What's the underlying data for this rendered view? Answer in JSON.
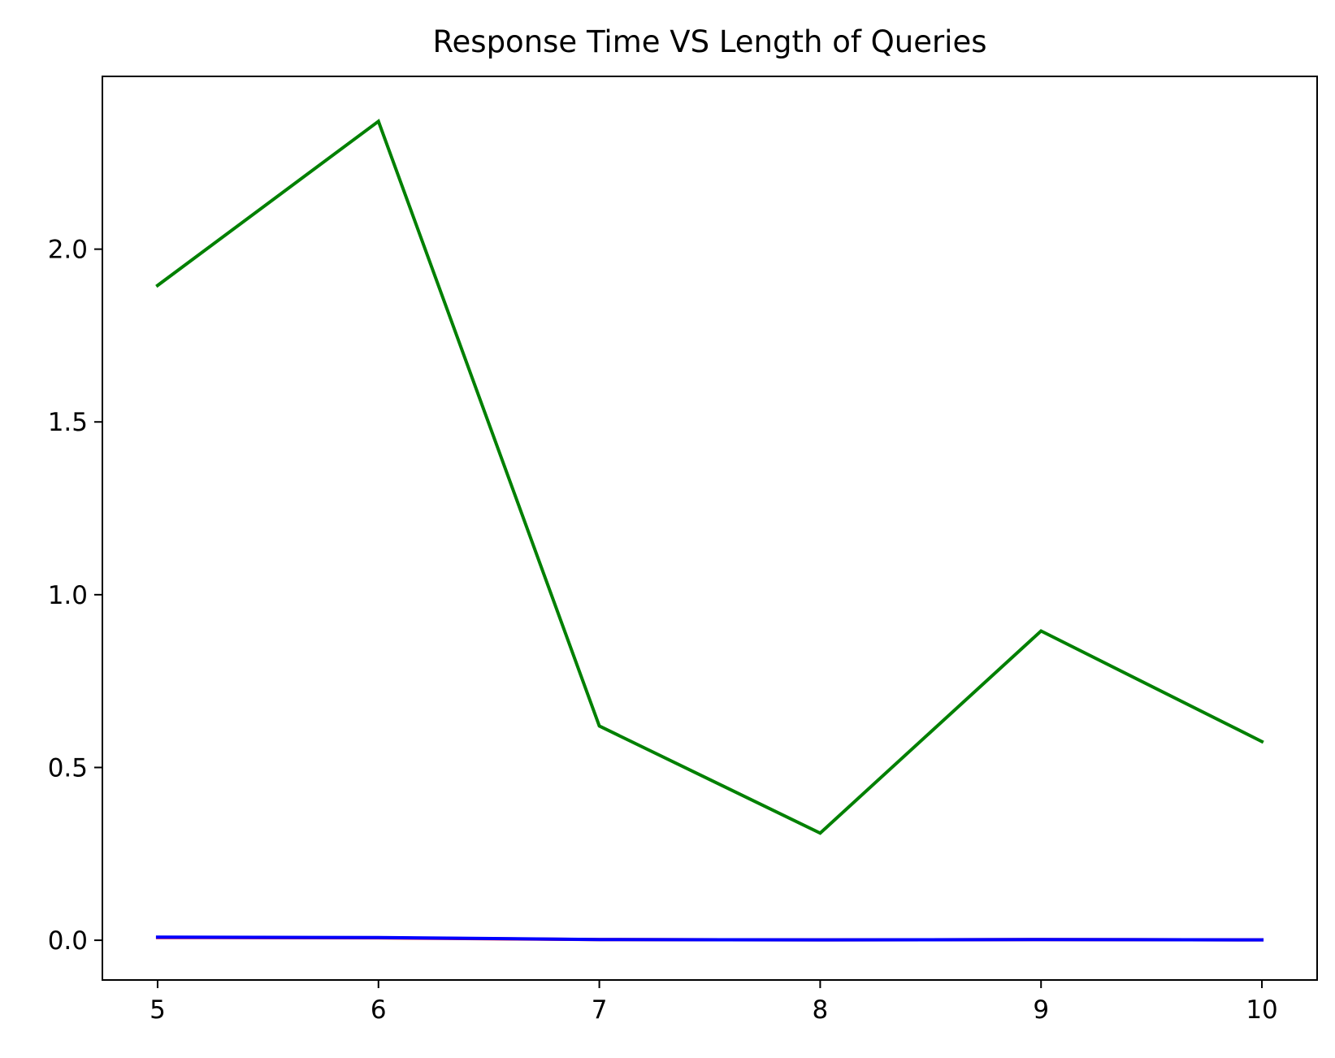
{
  "chart_data": {
    "type": "line",
    "title": "Response Time VS Length of Queries",
    "xlabel": "",
    "ylabel": "",
    "x": [
      5,
      6,
      7,
      8,
      9,
      10
    ],
    "xlim": [
      4.75,
      10.25
    ],
    "ylim": [
      -0.115,
      2.5
    ],
    "x_ticks": [
      5,
      6,
      7,
      8,
      9,
      10
    ],
    "x_tick_labels": [
      "5",
      "6",
      "7",
      "8",
      "9",
      "10"
    ],
    "y_ticks": [
      0.0,
      0.5,
      1.0,
      1.5,
      2.0
    ],
    "y_tick_labels": [
      "0.0",
      "0.5",
      "1.0",
      "1.5",
      "2.0"
    ],
    "grid": false,
    "legend": "none",
    "series": [
      {
        "color": "#008000",
        "values": [
          1.895,
          2.37,
          0.62,
          0.31,
          0.895,
          0.575
        ]
      },
      {
        "color": "#ff0000",
        "values": [
          0.008,
          0.007,
          0.002,
          0.001,
          0.002,
          0.001
        ]
      },
      {
        "color": "#0000ff",
        "values": [
          0.009,
          0.008,
          0.002,
          0.001,
          0.002,
          0.001
        ]
      }
    ]
  }
}
